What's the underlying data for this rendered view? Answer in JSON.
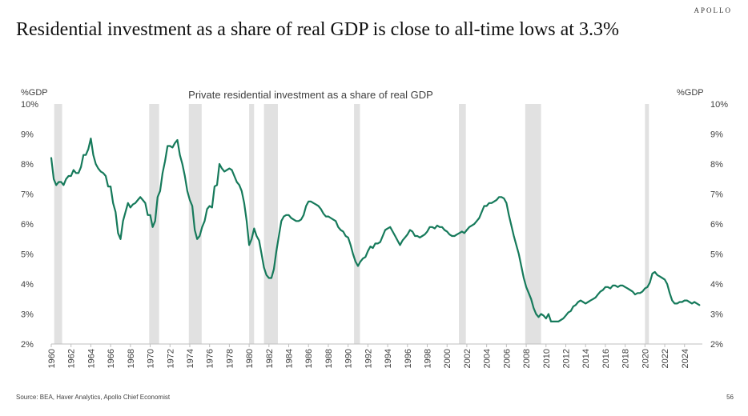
{
  "brand": "APOLLO",
  "headline": "Residential investment as a share of real GDP is close to all-time lows at 3.3%",
  "footer": {
    "source": "Source: BEA, Haver Analytics, Apollo Chief Economist",
    "page_number": "56"
  },
  "colors": {
    "line": "#167a5b",
    "recession": "#e1e1e1",
    "text": "#404040"
  },
  "chart_data": {
    "type": "line",
    "title": "Private residential investment as a share of real GDP",
    "ylabel_left": "%GDP",
    "ylabel_right": "%GDP",
    "xlim": [
      1960,
      2025.8
    ],
    "ylim": [
      2,
      10
    ],
    "y_ticks": [
      2,
      3,
      4,
      5,
      6,
      7,
      8,
      9,
      10
    ],
    "y_tick_suffix": "%",
    "x_ticks": [
      1960,
      1962,
      1964,
      1966,
      1968,
      1970,
      1972,
      1974,
      1976,
      1978,
      1980,
      1982,
      1984,
      1986,
      1988,
      1990,
      1992,
      1994,
      1996,
      1998,
      2000,
      2002,
      2004,
      2006,
      2008,
      2010,
      2012,
      2014,
      2016,
      2018,
      2020,
      2022,
      2024
    ],
    "grid": false,
    "recessions": [
      [
        1960.3,
        1961.1
      ],
      [
        1969.9,
        1970.9
      ],
      [
        1973.9,
        1975.2
      ],
      [
        1980.0,
        1980.5
      ],
      [
        1981.5,
        1982.9
      ],
      [
        1990.6,
        1991.2
      ],
      [
        2001.2,
        2001.9
      ],
      [
        2007.9,
        2009.5
      ],
      [
        2020.0,
        2020.4
      ]
    ],
    "series": [
      {
        "name": "Private residential investment as a share of real GDP",
        "points": [
          [
            1960.0,
            8.2
          ],
          [
            1960.25,
            7.5
          ],
          [
            1960.5,
            7.3
          ],
          [
            1960.75,
            7.4
          ],
          [
            1961.0,
            7.4
          ],
          [
            1961.25,
            7.3
          ],
          [
            1961.5,
            7.5
          ],
          [
            1961.75,
            7.6
          ],
          [
            1962.0,
            7.6
          ],
          [
            1962.25,
            7.8
          ],
          [
            1962.5,
            7.7
          ],
          [
            1962.75,
            7.7
          ],
          [
            1963.0,
            7.9
          ],
          [
            1963.25,
            8.3
          ],
          [
            1963.5,
            8.3
          ],
          [
            1963.75,
            8.5
          ],
          [
            1964.0,
            8.85
          ],
          [
            1964.25,
            8.3
          ],
          [
            1964.5,
            8.0
          ],
          [
            1964.75,
            7.85
          ],
          [
            1965.0,
            7.75
          ],
          [
            1965.25,
            7.7
          ],
          [
            1965.5,
            7.6
          ],
          [
            1965.75,
            7.25
          ],
          [
            1966.0,
            7.25
          ],
          [
            1966.25,
            6.7
          ],
          [
            1966.5,
            6.4
          ],
          [
            1966.75,
            5.7
          ],
          [
            1967.0,
            5.5
          ],
          [
            1967.25,
            6.1
          ],
          [
            1967.5,
            6.4
          ],
          [
            1967.75,
            6.7
          ],
          [
            1968.0,
            6.55
          ],
          [
            1968.25,
            6.65
          ],
          [
            1968.5,
            6.7
          ],
          [
            1968.75,
            6.8
          ],
          [
            1969.0,
            6.9
          ],
          [
            1969.25,
            6.8
          ],
          [
            1969.5,
            6.7
          ],
          [
            1969.75,
            6.3
          ],
          [
            1970.0,
            6.3
          ],
          [
            1970.25,
            5.9
          ],
          [
            1970.5,
            6.1
          ],
          [
            1970.75,
            6.9
          ],
          [
            1971.0,
            7.1
          ],
          [
            1971.25,
            7.7
          ],
          [
            1971.5,
            8.1
          ],
          [
            1971.75,
            8.6
          ],
          [
            1972.0,
            8.6
          ],
          [
            1972.25,
            8.55
          ],
          [
            1972.5,
            8.7
          ],
          [
            1972.75,
            8.8
          ],
          [
            1973.0,
            8.3
          ],
          [
            1973.25,
            8.0
          ],
          [
            1973.5,
            7.6
          ],
          [
            1973.75,
            7.1
          ],
          [
            1974.0,
            6.8
          ],
          [
            1974.25,
            6.6
          ],
          [
            1974.5,
            5.8
          ],
          [
            1974.75,
            5.5
          ],
          [
            1975.0,
            5.6
          ],
          [
            1975.25,
            5.9
          ],
          [
            1975.5,
            6.1
          ],
          [
            1975.75,
            6.5
          ],
          [
            1976.0,
            6.6
          ],
          [
            1976.25,
            6.55
          ],
          [
            1976.5,
            7.25
          ],
          [
            1976.75,
            7.3
          ],
          [
            1977.0,
            8.0
          ],
          [
            1977.25,
            7.85
          ],
          [
            1977.5,
            7.75
          ],
          [
            1977.75,
            7.8
          ],
          [
            1978.0,
            7.85
          ],
          [
            1978.25,
            7.8
          ],
          [
            1978.5,
            7.6
          ],
          [
            1978.75,
            7.4
          ],
          [
            1979.0,
            7.3
          ],
          [
            1979.25,
            7.1
          ],
          [
            1979.5,
            6.7
          ],
          [
            1979.75,
            6.1
          ],
          [
            1980.0,
            5.3
          ],
          [
            1980.25,
            5.5
          ],
          [
            1980.5,
            5.85
          ],
          [
            1980.75,
            5.6
          ],
          [
            1981.0,
            5.45
          ],
          [
            1981.25,
            5.0
          ],
          [
            1981.5,
            4.55
          ],
          [
            1981.75,
            4.3
          ],
          [
            1982.0,
            4.2
          ],
          [
            1982.25,
            4.2
          ],
          [
            1982.5,
            4.5
          ],
          [
            1982.75,
            5.1
          ],
          [
            1983.0,
            5.6
          ],
          [
            1983.25,
            6.1
          ],
          [
            1983.5,
            6.25
          ],
          [
            1983.75,
            6.3
          ],
          [
            1984.0,
            6.3
          ],
          [
            1984.25,
            6.2
          ],
          [
            1984.5,
            6.15
          ],
          [
            1984.75,
            6.1
          ],
          [
            1985.0,
            6.1
          ],
          [
            1985.25,
            6.15
          ],
          [
            1985.5,
            6.3
          ],
          [
            1985.75,
            6.6
          ],
          [
            1986.0,
            6.75
          ],
          [
            1986.25,
            6.75
          ],
          [
            1986.5,
            6.7
          ],
          [
            1986.75,
            6.65
          ],
          [
            1987.0,
            6.6
          ],
          [
            1987.25,
            6.5
          ],
          [
            1987.5,
            6.35
          ],
          [
            1987.75,
            6.25
          ],
          [
            1988.0,
            6.25
          ],
          [
            1988.25,
            6.2
          ],
          [
            1988.5,
            6.15
          ],
          [
            1988.75,
            6.1
          ],
          [
            1989.0,
            5.9
          ],
          [
            1989.25,
            5.8
          ],
          [
            1989.5,
            5.75
          ],
          [
            1989.75,
            5.6
          ],
          [
            1990.0,
            5.55
          ],
          [
            1990.25,
            5.3
          ],
          [
            1990.5,
            5.0
          ],
          [
            1990.75,
            4.75
          ],
          [
            1991.0,
            4.6
          ],
          [
            1991.25,
            4.75
          ],
          [
            1991.5,
            4.85
          ],
          [
            1991.75,
            4.9
          ],
          [
            1992.0,
            5.1
          ],
          [
            1992.25,
            5.25
          ],
          [
            1992.5,
            5.2
          ],
          [
            1992.75,
            5.35
          ],
          [
            1993.0,
            5.35
          ],
          [
            1993.25,
            5.4
          ],
          [
            1993.5,
            5.6
          ],
          [
            1993.75,
            5.8
          ],
          [
            1994.0,
            5.85
          ],
          [
            1994.25,
            5.9
          ],
          [
            1994.5,
            5.75
          ],
          [
            1994.75,
            5.6
          ],
          [
            1995.0,
            5.45
          ],
          [
            1995.25,
            5.3
          ],
          [
            1995.5,
            5.45
          ],
          [
            1995.75,
            5.55
          ],
          [
            1996.0,
            5.65
          ],
          [
            1996.25,
            5.8
          ],
          [
            1996.5,
            5.75
          ],
          [
            1996.75,
            5.6
          ],
          [
            1997.0,
            5.6
          ],
          [
            1997.25,
            5.55
          ],
          [
            1997.5,
            5.6
          ],
          [
            1997.75,
            5.65
          ],
          [
            1998.0,
            5.75
          ],
          [
            1998.25,
            5.9
          ],
          [
            1998.5,
            5.9
          ],
          [
            1998.75,
            5.85
          ],
          [
            1999.0,
            5.95
          ],
          [
            1999.25,
            5.9
          ],
          [
            1999.5,
            5.9
          ],
          [
            1999.75,
            5.8
          ],
          [
            2000.0,
            5.75
          ],
          [
            2000.25,
            5.65
          ],
          [
            2000.5,
            5.6
          ],
          [
            2000.75,
            5.6
          ],
          [
            2001.0,
            5.65
          ],
          [
            2001.25,
            5.7
          ],
          [
            2001.5,
            5.75
          ],
          [
            2001.75,
            5.7
          ],
          [
            2002.0,
            5.8
          ],
          [
            2002.25,
            5.9
          ],
          [
            2002.5,
            5.95
          ],
          [
            2002.75,
            6.0
          ],
          [
            2003.0,
            6.1
          ],
          [
            2003.25,
            6.2
          ],
          [
            2003.5,
            6.4
          ],
          [
            2003.75,
            6.6
          ],
          [
            2004.0,
            6.6
          ],
          [
            2004.25,
            6.7
          ],
          [
            2004.5,
            6.7
          ],
          [
            2004.75,
            6.75
          ],
          [
            2005.0,
            6.8
          ],
          [
            2005.25,
            6.9
          ],
          [
            2005.5,
            6.9
          ],
          [
            2005.75,
            6.85
          ],
          [
            2006.0,
            6.7
          ],
          [
            2006.25,
            6.3
          ],
          [
            2006.5,
            5.95
          ],
          [
            2006.75,
            5.6
          ],
          [
            2007.0,
            5.3
          ],
          [
            2007.25,
            5.0
          ],
          [
            2007.5,
            4.6
          ],
          [
            2007.75,
            4.2
          ],
          [
            2008.0,
            3.9
          ],
          [
            2008.25,
            3.7
          ],
          [
            2008.5,
            3.5
          ],
          [
            2008.75,
            3.2
          ],
          [
            2009.0,
            3.0
          ],
          [
            2009.25,
            2.9
          ],
          [
            2009.5,
            3.0
          ],
          [
            2009.75,
            2.95
          ],
          [
            2010.0,
            2.85
          ],
          [
            2010.25,
            3.0
          ],
          [
            2010.5,
            2.75
          ],
          [
            2010.75,
            2.75
          ],
          [
            2011.0,
            2.75
          ],
          [
            2011.25,
            2.75
          ],
          [
            2011.5,
            2.8
          ],
          [
            2011.75,
            2.85
          ],
          [
            2012.0,
            2.95
          ],
          [
            2012.25,
            3.05
          ],
          [
            2012.5,
            3.1
          ],
          [
            2012.75,
            3.25
          ],
          [
            2013.0,
            3.3
          ],
          [
            2013.25,
            3.4
          ],
          [
            2013.5,
            3.45
          ],
          [
            2013.75,
            3.4
          ],
          [
            2014.0,
            3.35
          ],
          [
            2014.25,
            3.4
          ],
          [
            2014.5,
            3.45
          ],
          [
            2014.75,
            3.5
          ],
          [
            2015.0,
            3.55
          ],
          [
            2015.25,
            3.65
          ],
          [
            2015.5,
            3.75
          ],
          [
            2015.75,
            3.8
          ],
          [
            2016.0,
            3.9
          ],
          [
            2016.25,
            3.9
          ],
          [
            2016.5,
            3.85
          ],
          [
            2016.75,
            3.95
          ],
          [
            2017.0,
            3.95
          ],
          [
            2017.25,
            3.9
          ],
          [
            2017.5,
            3.95
          ],
          [
            2017.75,
            3.95
          ],
          [
            2018.0,
            3.9
          ],
          [
            2018.25,
            3.85
          ],
          [
            2018.5,
            3.8
          ],
          [
            2018.75,
            3.75
          ],
          [
            2019.0,
            3.65
          ],
          [
            2019.25,
            3.7
          ],
          [
            2019.5,
            3.7
          ],
          [
            2019.75,
            3.75
          ],
          [
            2020.0,
            3.85
          ],
          [
            2020.25,
            3.9
          ],
          [
            2020.5,
            4.05
          ],
          [
            2020.75,
            4.35
          ],
          [
            2021.0,
            4.4
          ],
          [
            2021.25,
            4.3
          ],
          [
            2021.5,
            4.25
          ],
          [
            2021.75,
            4.2
          ],
          [
            2022.0,
            4.15
          ],
          [
            2022.25,
            4.0
          ],
          [
            2022.5,
            3.7
          ],
          [
            2022.75,
            3.45
          ],
          [
            2023.0,
            3.35
          ],
          [
            2023.25,
            3.35
          ],
          [
            2023.5,
            3.4
          ],
          [
            2023.75,
            3.4
          ],
          [
            2024.0,
            3.45
          ],
          [
            2024.25,
            3.45
          ],
          [
            2024.5,
            3.4
          ],
          [
            2024.75,
            3.35
          ],
          [
            2025.0,
            3.4
          ],
          [
            2025.25,
            3.35
          ],
          [
            2025.5,
            3.3
          ]
        ]
      }
    ]
  }
}
